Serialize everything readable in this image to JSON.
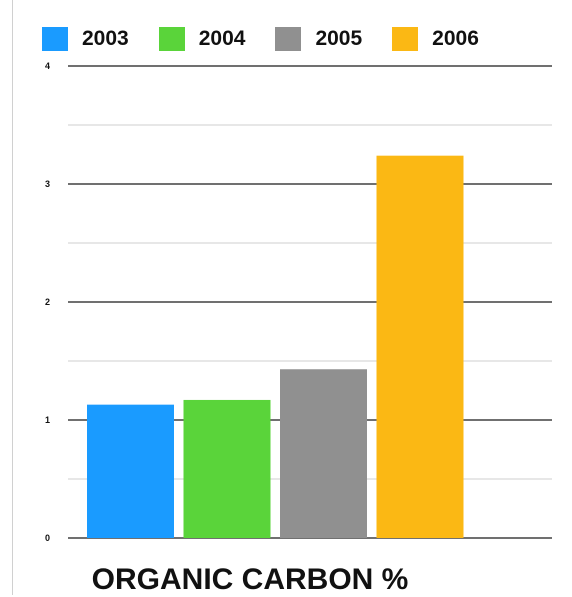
{
  "chart_data": {
    "type": "bar",
    "title": "ORGANIC CARBON %",
    "xlabel": "",
    "ylabel": "",
    "categories": [
      "2003",
      "2004",
      "2005",
      "2006"
    ],
    "values": [
      1.13,
      1.17,
      1.43,
      3.24
    ],
    "colors": [
      "#1a9bff",
      "#5ad43a",
      "#909090",
      "#fbb814"
    ],
    "ylim": [
      0,
      4
    ],
    "yticks": [
      "0",
      "1",
      "2",
      "3",
      "4"
    ],
    "grid": true,
    "legend_position": "top-left"
  }
}
